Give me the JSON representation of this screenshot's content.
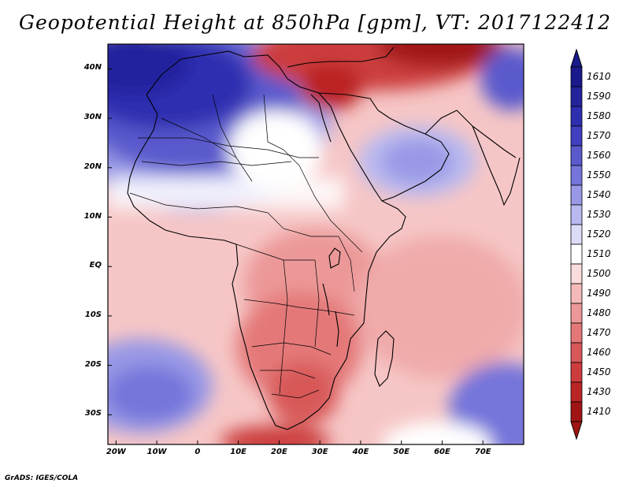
{
  "title": "Geopotential Height at 850hPa [gpm], VT: 2017122412",
  "footer": "GrADS: IGES/COLA",
  "axes": {
    "lat_labels": [
      {
        "label": "40N",
        "lat": 40
      },
      {
        "label": "30N",
        "lat": 30
      },
      {
        "label": "20N",
        "lat": 20
      },
      {
        "label": "10N",
        "lat": 10
      },
      {
        "label": "EQ",
        "lat": 0
      },
      {
        "label": "10S",
        "lat": -10
      },
      {
        "label": "20S",
        "lat": -20
      },
      {
        "label": "30S",
        "lat": -30
      }
    ],
    "lon_labels": [
      {
        "label": "20W",
        "lon": -20
      },
      {
        "label": "10W",
        "lon": -10
      },
      {
        "label": "0",
        "lon": 0
      },
      {
        "label": "10E",
        "lon": 10
      },
      {
        "label": "20E",
        "lon": 20
      },
      {
        "label": "30E",
        "lon": 30
      },
      {
        "label": "40E",
        "lon": 40
      },
      {
        "label": "50E",
        "lon": 50
      },
      {
        "label": "60E",
        "lon": 60
      },
      {
        "label": "70E",
        "lon": 70
      }
    ],
    "lon_range": [
      -22,
      80
    ],
    "lat_range": [
      -36,
      45
    ]
  },
  "colorbar": {
    "levels": [
      {
        "label": "1610",
        "color": "#1a1a8c"
      },
      {
        "label": "1590",
        "color": "#23239e"
      },
      {
        "label": "1580",
        "color": "#2e2eb0"
      },
      {
        "label": "1570",
        "color": "#4040c0"
      },
      {
        "label": "1560",
        "color": "#5a5acd"
      },
      {
        "label": "1550",
        "color": "#7474da"
      },
      {
        "label": "1540",
        "color": "#9898e6"
      },
      {
        "label": "1530",
        "color": "#b9b9f0"
      },
      {
        "label": "1520",
        "color": "#dcdcf8"
      },
      {
        "label": "1510",
        "color": "#ffffff"
      },
      {
        "label": "1500",
        "color": "#fadcdc"
      },
      {
        "label": "1490",
        "color": "#f4baba"
      },
      {
        "label": "1480",
        "color": "#ec9898"
      },
      {
        "label": "1470",
        "color": "#e47878"
      },
      {
        "label": "1460",
        "color": "#d85858"
      },
      {
        "label": "1450",
        "color": "#cc3c3c"
      },
      {
        "label": "1430",
        "color": "#bb2424"
      },
      {
        "label": "1410",
        "color": "#a01414"
      }
    ]
  }
}
